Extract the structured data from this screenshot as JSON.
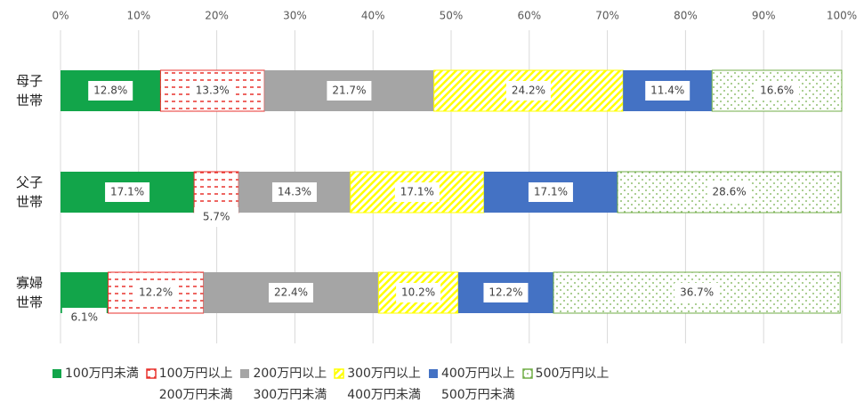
{
  "chart_data": {
    "type": "stacked-barh",
    "categories": [
      "母子\n世帯",
      "父子\n世帯",
      "寡婦\n世帯"
    ],
    "xlim": [
      0,
      100
    ],
    "xticks": [
      {
        "value": 0,
        "label": "0%"
      },
      {
        "value": 10,
        "label": "10%"
      },
      {
        "value": 20,
        "label": "20%"
      },
      {
        "value": 30,
        "label": "30%"
      },
      {
        "value": 40,
        "label": "40%"
      },
      {
        "value": 50,
        "label": "50%"
      },
      {
        "value": 60,
        "label": "60%"
      },
      {
        "value": 70,
        "label": "70%"
      },
      {
        "value": 80,
        "label": "80%"
      },
      {
        "value": 90,
        "label": "90%"
      },
      {
        "value": 100,
        "label": "100%"
      }
    ],
    "grid": true,
    "legend": "bottom",
    "series": [
      {
        "name": "100万円未満",
        "color": "#12a54a",
        "hatch": "solid",
        "values": [
          12.8,
          17.1,
          6.1
        ],
        "value_labels": [
          "12.8%",
          "17.1%",
          "6.1%"
        ]
      },
      {
        "name": "100万円以上\n200万円未満",
        "color": "#e8322d",
        "hatch": "dash",
        "values": [
          13.3,
          5.7,
          12.2
        ],
        "value_labels": [
          "13.3%",
          "5.7%",
          "12.2%"
        ]
      },
      {
        "name": "200万円以上\n300万円未満",
        "color": "#a5a5a5",
        "hatch": "solid",
        "values": [
          21.7,
          14.3,
          22.4
        ],
        "value_labels": [
          "21.7%",
          "14.3%",
          "22.4%"
        ]
      },
      {
        "name": "300万円以上\n400万円未満",
        "color": "#ffff00",
        "hatch": "diagonal",
        "values": [
          24.2,
          17.1,
          10.2
        ],
        "value_labels": [
          "24.2%",
          "17.1%",
          "10.2%"
        ]
      },
      {
        "name": "400万円以上\n500万円未満",
        "color": "#4472c4",
        "hatch": "solid",
        "values": [
          11.4,
          17.1,
          12.2
        ],
        "value_labels": [
          "11.4%",
          "17.1%",
          "12.2%"
        ]
      },
      {
        "name": "500万円以上",
        "color": "#70ad47",
        "hatch": "dots",
        "values": [
          16.6,
          28.6,
          36.7
        ],
        "value_labels": [
          "16.6%",
          "28.6%",
          "36.7%"
        ]
      }
    ]
  }
}
